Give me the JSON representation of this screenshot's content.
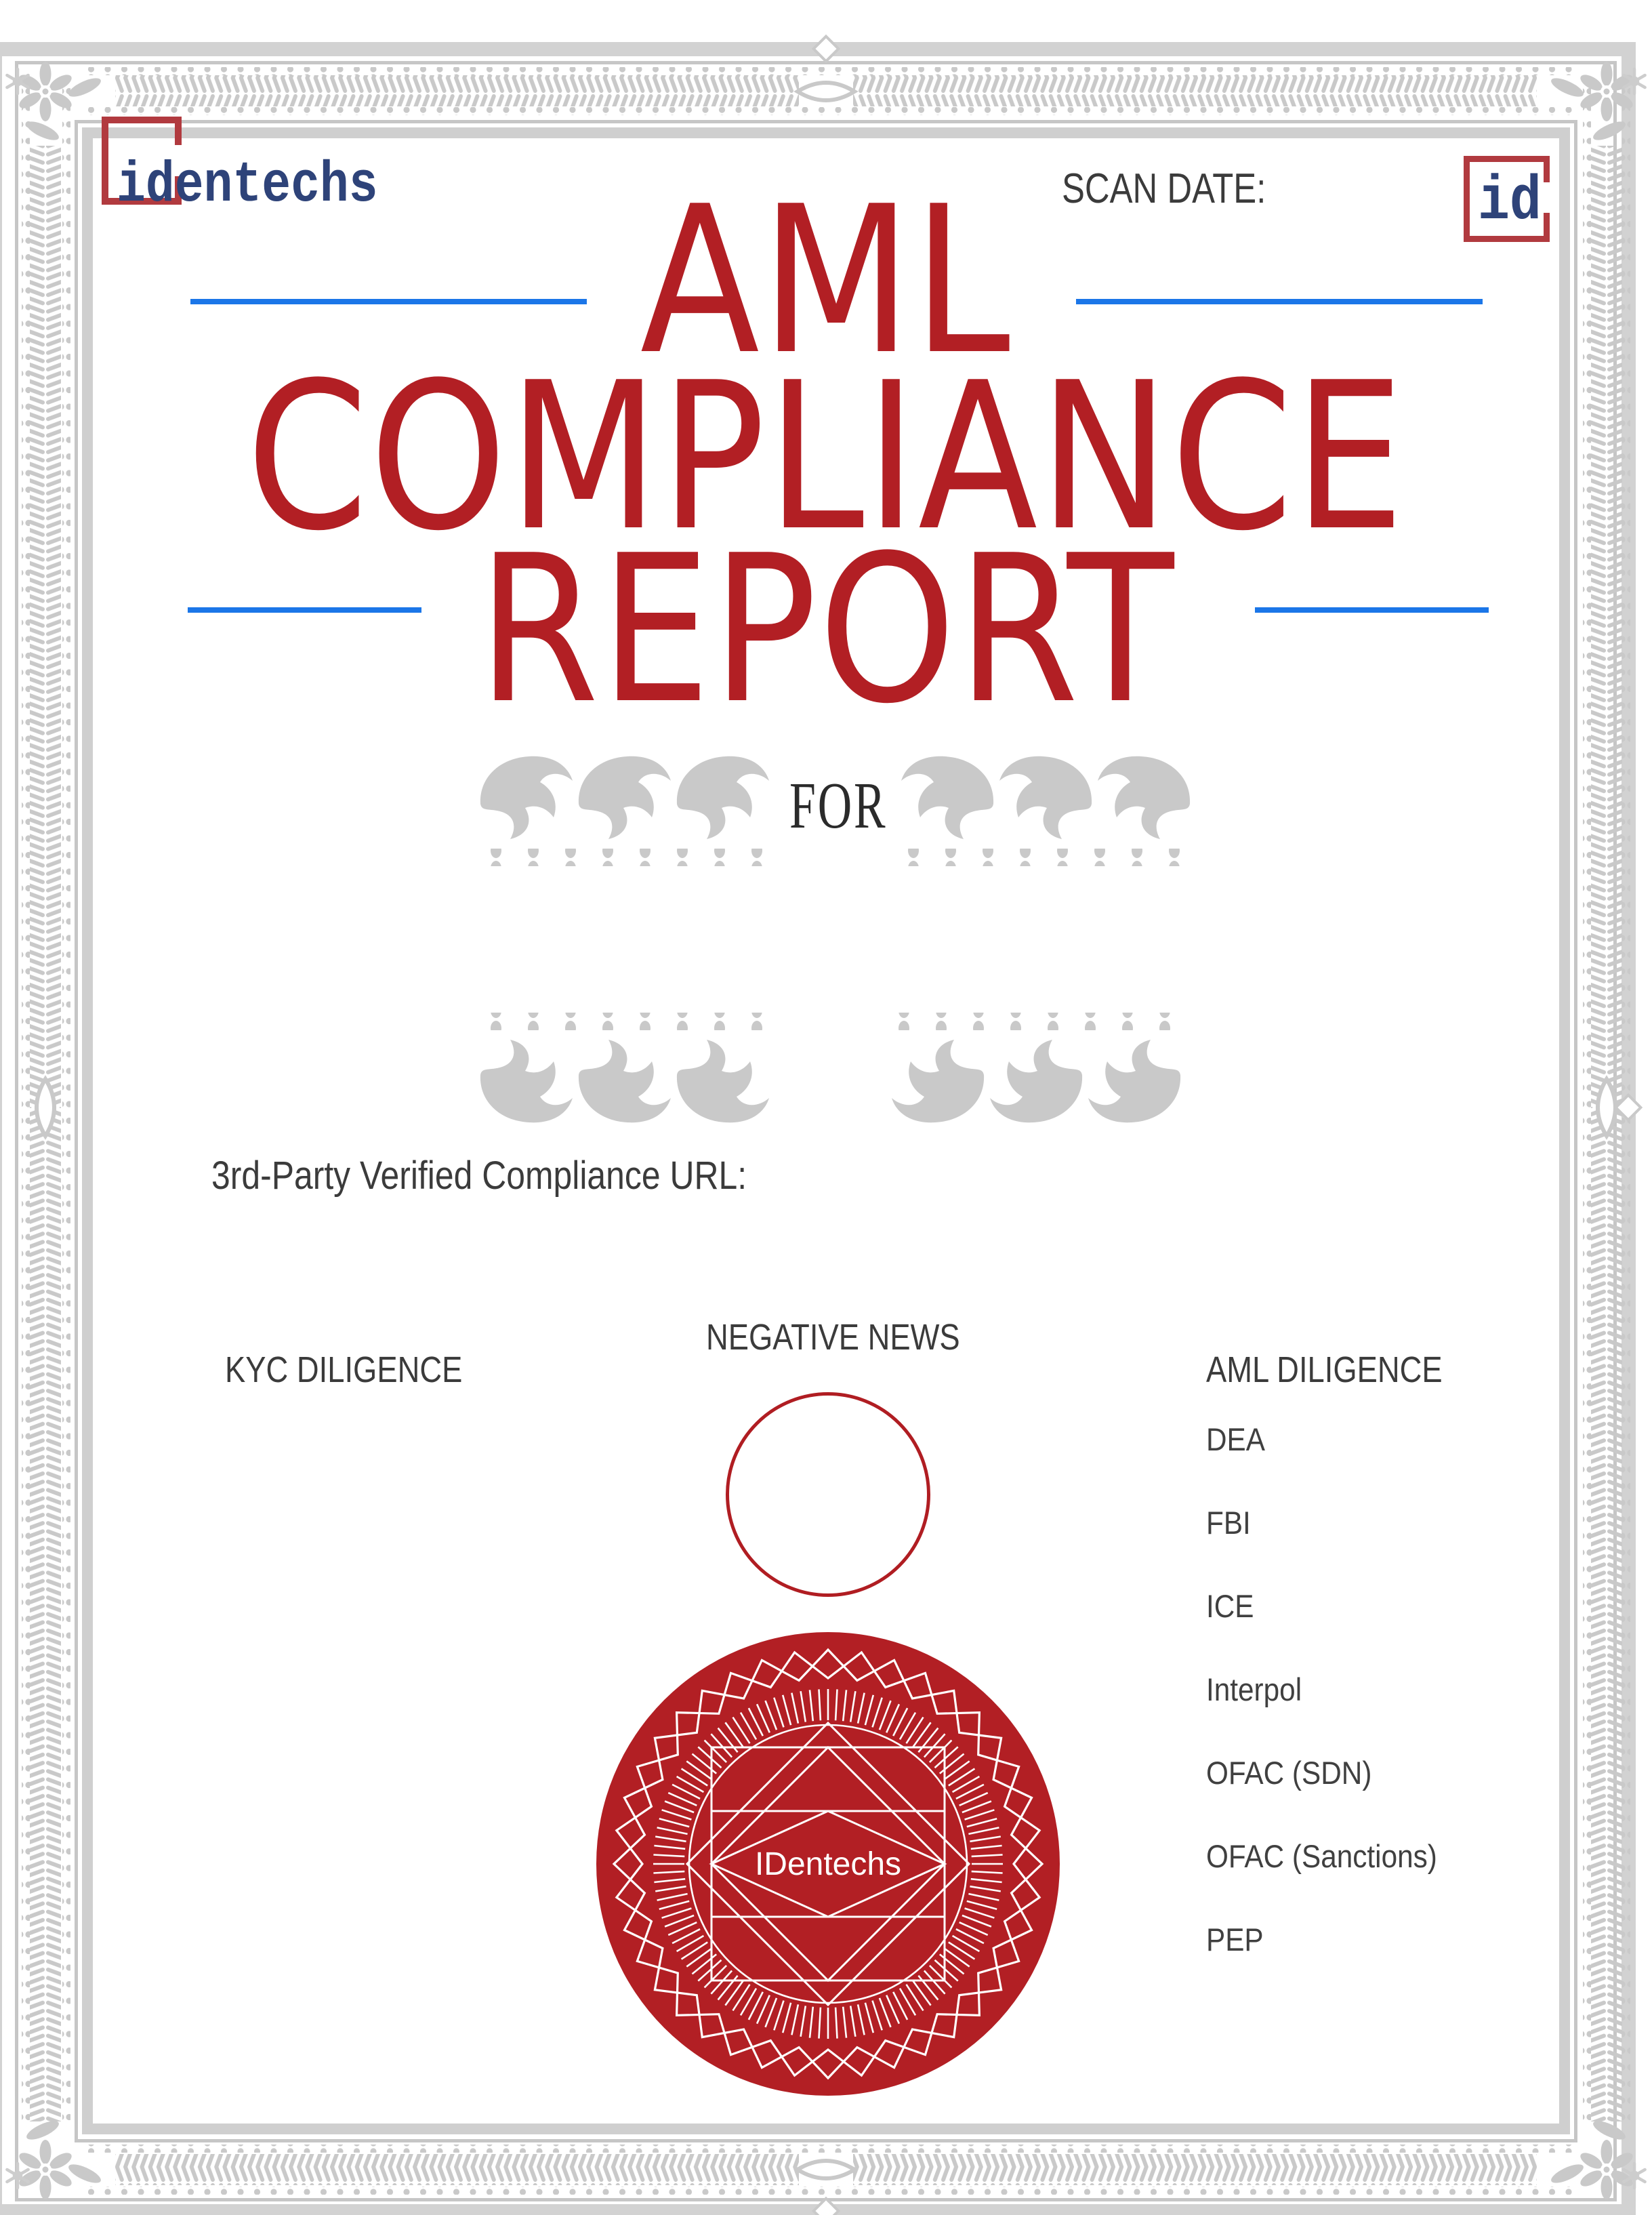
{
  "header": {
    "brand_logo_text": "identechs",
    "scan_date_label": "SCAN DATE:",
    "corner_logo_text": "id"
  },
  "title": {
    "line1": "AML",
    "line2": "COMPLIANCE",
    "line3": "REPORT"
  },
  "for_label": "FOR",
  "verified_url_label": "3rd-Party Verified Compliance URL:",
  "sections": {
    "kyc": {
      "label": "KYC DILIGENCE"
    },
    "negative_news": {
      "label": "NEGATIVE NEWS"
    },
    "aml": {
      "label": "AML DILIGENCE",
      "items": [
        "DEA",
        "FBI",
        "ICE",
        "Interpol",
        "OFAC (SDN)",
        "OFAC (Sanctions)",
        "PEP"
      ]
    }
  },
  "seal_text": "IDentechs",
  "colors": {
    "accent_red": "#b21f24",
    "bracket_red": "#b13a3f",
    "line_blue": "#1b76e8",
    "logo_navy": "#2e4379",
    "ornament_gray": "#c9c9c9"
  }
}
